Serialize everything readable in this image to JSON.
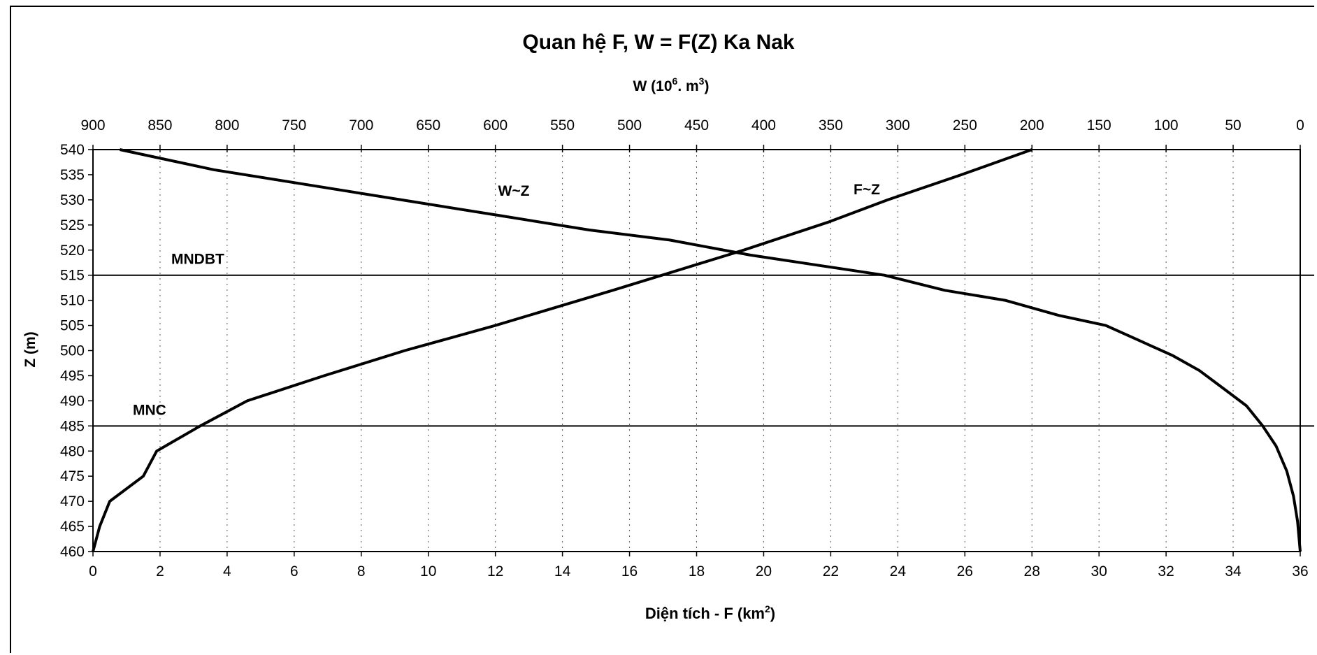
{
  "chart_data": {
    "type": "line",
    "title": "Quan hệ F, W = F(Z) Ka Nak",
    "xlabel_bottom": "Diện tích - F (km",
    "xlabel_bottom_sup": "2",
    "xlabel_bottom_end": ")",
    "xlabel_top": "W (10",
    "xlabel_top_sup1": "6",
    "xlabel_top_mid": ". m",
    "xlabel_top_sup2": "3",
    "xlabel_top_end": ")",
    "ylabel": "Z (m)",
    "ylim": [
      460,
      540
    ],
    "xlim_bottom": [
      0,
      36
    ],
    "xlim_top": [
      900,
      0
    ],
    "y_ticks": [
      460,
      465,
      470,
      475,
      480,
      485,
      490,
      495,
      500,
      505,
      510,
      515,
      520,
      525,
      530,
      535,
      540
    ],
    "x_bottom_ticks": [
      0,
      2,
      4,
      6,
      8,
      10,
      12,
      14,
      16,
      18,
      20,
      22,
      24,
      26,
      28,
      30,
      32,
      34,
      36
    ],
    "x_top_ticks": [
      900,
      850,
      800,
      750,
      700,
      650,
      600,
      550,
      500,
      450,
      400,
      350,
      300,
      250,
      200,
      150,
      100,
      50,
      0
    ],
    "grid": "vertical dotted",
    "series": [
      {
        "name": "F~Z",
        "axis": "bottom",
        "points": [
          [
            0,
            460
          ],
          [
            0.2,
            465
          ],
          [
            0.5,
            470
          ],
          [
            1.5,
            475
          ],
          [
            1.9,
            480
          ],
          [
            3.2,
            485
          ],
          [
            4.6,
            490
          ],
          [
            6.9,
            495
          ],
          [
            9.3,
            500
          ],
          [
            12,
            505
          ],
          [
            15.5,
            512
          ],
          [
            19.4,
            520
          ],
          [
            21.9,
            525.5
          ],
          [
            23.7,
            530
          ],
          [
            25.9,
            535
          ],
          [
            28,
            540
          ]
        ]
      },
      {
        "name": "W~Z",
        "axis": "top",
        "points": [
          [
            880,
            540
          ],
          [
            810,
            536
          ],
          [
            740,
            533
          ],
          [
            670,
            530
          ],
          [
            600,
            527
          ],
          [
            530,
            524
          ],
          [
            470,
            522
          ],
          [
            410,
            519
          ],
          [
            360,
            517
          ],
          [
            310,
            515
          ],
          [
            265,
            512
          ],
          [
            220,
            510
          ],
          [
            180,
            507
          ],
          [
            145,
            505
          ],
          [
            120,
            502
          ],
          [
            95,
            499
          ],
          [
            75,
            496
          ],
          [
            55,
            492
          ],
          [
            40,
            489
          ],
          [
            28,
            485
          ],
          [
            18,
            481
          ],
          [
            10,
            476
          ],
          [
            5,
            471
          ],
          [
            2,
            466
          ],
          [
            0,
            460
          ]
        ]
      }
    ],
    "annotations": [
      {
        "text": "MNDBT",
        "z": 515
      },
      {
        "text": "MNC",
        "z": 485
      }
    ]
  }
}
